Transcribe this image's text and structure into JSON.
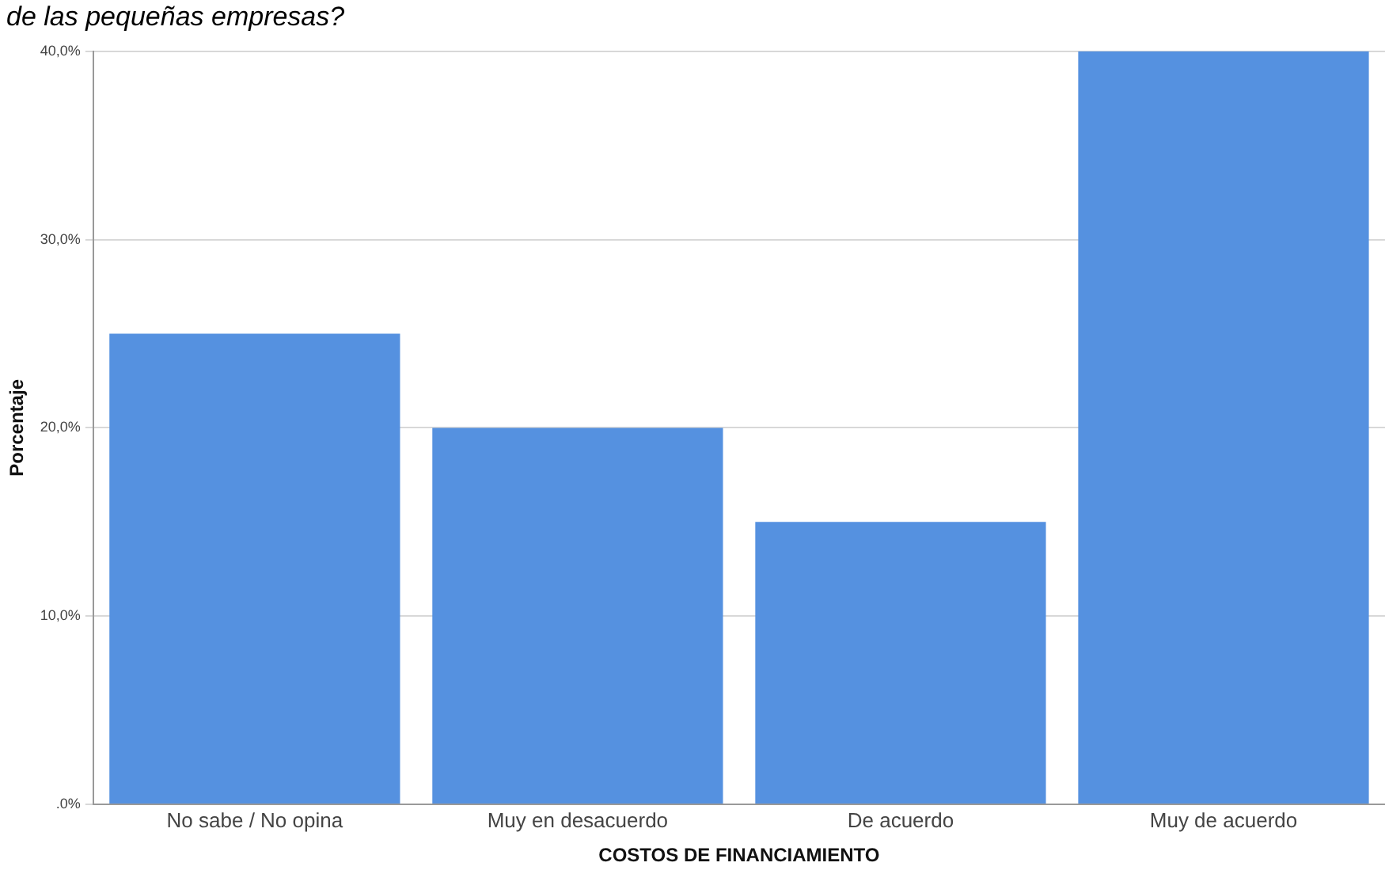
{
  "chart_data": {
    "type": "bar",
    "title": "de las pequeñas empresas?",
    "categories": [
      "No sabe / No opina",
      "Muy en desacuerdo",
      "De acuerdo",
      "Muy de acuerdo"
    ],
    "values": [
      25,
      20,
      15,
      40
    ],
    "color": "#5591e0",
    "xlabel": "COSTOS DE FINANCIAMIENTO",
    "ylabel": "Porcentaje",
    "ylim": [
      0,
      40
    ],
    "yticks": [
      {
        "value": 0,
        "label": ".0%"
      },
      {
        "value": 10,
        "label": "10,0%"
      },
      {
        "value": 20,
        "label": "20,0%"
      },
      {
        "value": 30,
        "label": "30,0%"
      },
      {
        "value": 40,
        "label": "40,0%"
      }
    ],
    "grid": "y",
    "legend": false
  }
}
